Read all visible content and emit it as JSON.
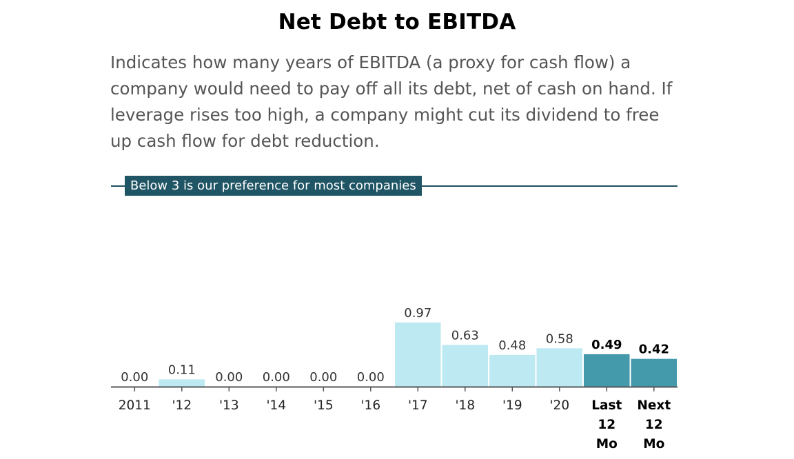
{
  "title": "Net Debt to EBITDA",
  "description": "Indicates how many years of EBITDA (a proxy for cash flow) a company would need to pay off all its debt, net of cash on hand. If leverage rises too high, a company might cut its dividend to free up cash flow for debt reduction.",
  "threshold_label": "Below 3 is our preference for most companies",
  "colors": {
    "historical_bar": "#bde9f2",
    "current_bar": "#4499ab",
    "threshold_band": "#1f5564"
  },
  "chart_data": {
    "type": "bar",
    "title": "Net Debt to EBITDA",
    "threshold": 3,
    "categories": [
      "2011",
      "'12",
      "'13",
      "'14",
      "'15",
      "'16",
      "'17",
      "'18",
      "'19",
      "'20",
      "Last 12 Mo",
      "Next 12 Mo"
    ],
    "category_lines": [
      [
        "2011"
      ],
      [
        "'12"
      ],
      [
        "'13"
      ],
      [
        "'14"
      ],
      [
        "'15"
      ],
      [
        "'16"
      ],
      [
        "'17"
      ],
      [
        "'18"
      ],
      [
        "'19"
      ],
      [
        "'20"
      ],
      [
        "Last",
        "12",
        "Mo"
      ],
      [
        "Next",
        "12",
        "Mo"
      ]
    ],
    "values": [
      0.0,
      0.11,
      0.0,
      0.0,
      0.0,
      0.0,
      0.97,
      0.63,
      0.48,
      0.58,
      0.49,
      0.42
    ],
    "value_labels": [
      "0.00",
      "0.11",
      "0.00",
      "0.00",
      "0.00",
      "0.00",
      "0.97",
      "0.63",
      "0.48",
      "0.58",
      "0.49",
      "0.42"
    ],
    "highlighted": [
      false,
      false,
      false,
      false,
      false,
      false,
      false,
      false,
      false,
      false,
      true,
      true
    ],
    "xlabel": "",
    "ylabel": "",
    "ylim": [
      0,
      3
    ]
  }
}
